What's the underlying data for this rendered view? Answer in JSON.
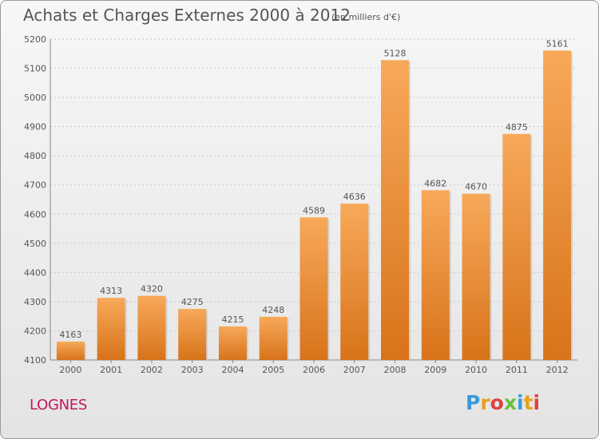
{
  "header": {
    "title": "Achats et Charges Externes 2000 à 2012",
    "subtitle": "(en milliers d'€)"
  },
  "footer": {
    "commune": "LOGNES",
    "brand": "Proxiti",
    "brand_colors": [
      "#3a9ad9",
      "#e8a01c",
      "#e04040",
      "#6abf40",
      "#3a9ad9",
      "#e8a01c",
      "#e04040"
    ]
  },
  "colors": {
    "bar": "#f28c2a",
    "bar_light": "#f7a95a",
    "bar_dark": "#d8731a",
    "grid": "#c8c8c8",
    "text": "#555555",
    "commune": "#c2185b"
  },
  "chart_data": {
    "type": "bar",
    "categories": [
      "2000",
      "2001",
      "2002",
      "2003",
      "2004",
      "2005",
      "2006",
      "2007",
      "2008",
      "2009",
      "2010",
      "2011",
      "2012"
    ],
    "values": [
      4163,
      4313,
      4320,
      4275,
      4215,
      4248,
      4589,
      4636,
      5128,
      4682,
      4670,
      4875,
      5161
    ],
    "ylim": [
      4100,
      5200
    ],
    "yticks": [
      4100,
      4200,
      4300,
      4400,
      4500,
      4600,
      4700,
      4800,
      4900,
      5000,
      5100,
      5200
    ],
    "grid": true,
    "data_labels": true
  }
}
